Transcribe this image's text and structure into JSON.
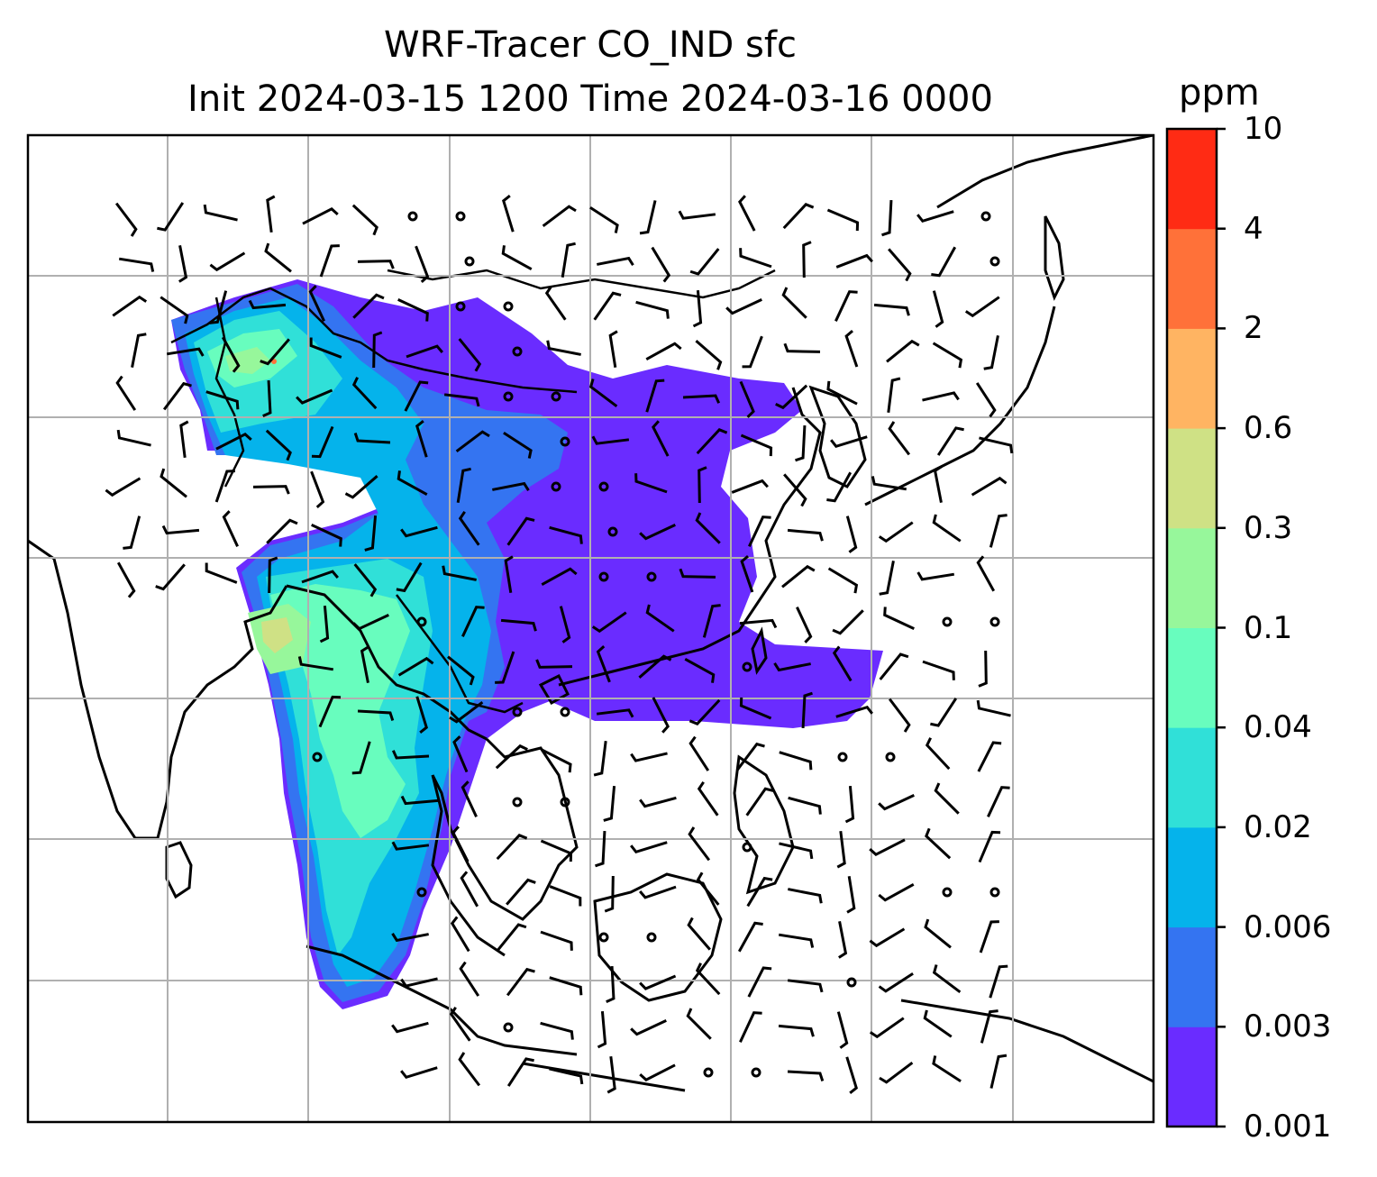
{
  "map": {
    "title_line1": "WRF-Tracer CO_IND sfc",
    "title_line2": "Init 2024-03-15 1200 Time 2024-03-16 0000",
    "grid_lines": "on",
    "overlay": "wind barbs",
    "coastlines": "on",
    "borders": "on"
  },
  "colorbar": {
    "unit": "ppm",
    "ticks": [
      "0.001",
      "0.003",
      "0.006",
      "0.02",
      "0.04",
      "0.1",
      "0.3",
      "0.6",
      "2",
      "4",
      "10"
    ],
    "colors": [
      "#6a2cff",
      "#3474f1",
      "#05b3eb",
      "#30e0d8",
      "#68fdbe",
      "#97f79b",
      "#cfe185",
      "#ffb462",
      "#ff7139",
      "#ff2b14"
    ]
  }
}
